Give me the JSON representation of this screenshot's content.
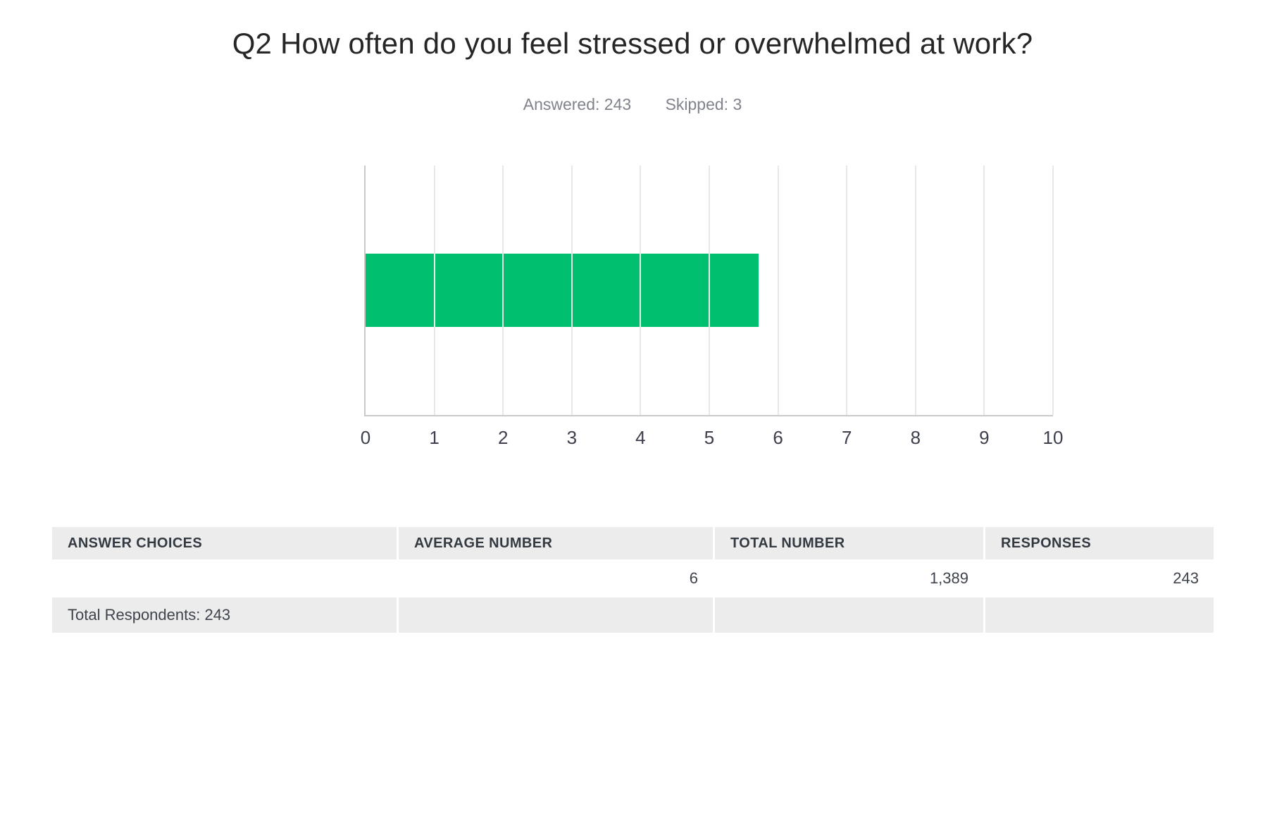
{
  "header": {
    "title": "Q2 How often do you feel stressed or overwhelmed at work?",
    "answered_label": "Answered: 243",
    "skipped_label": "Skipped: 3"
  },
  "chart_data": {
    "type": "bar",
    "orientation": "horizontal",
    "title": "Q2 How often do you feel stressed or overwhelmed at work?",
    "categories": [
      ""
    ],
    "series": [
      {
        "name": "Average Number",
        "values": [
          5.72
        ]
      }
    ],
    "xlabel": "",
    "ylabel": "",
    "xlim": [
      0,
      10
    ],
    "x_ticks": [
      "0",
      "1",
      "2",
      "3",
      "4",
      "5",
      "6",
      "7",
      "8",
      "9",
      "10"
    ],
    "grid": true,
    "legend": false,
    "bar_color": "#00BF6F",
    "answered": 243,
    "skipped": 3
  },
  "table": {
    "columns": [
      "ANSWER CHOICES",
      "AVERAGE NUMBER",
      "TOTAL NUMBER",
      "RESPONSES"
    ],
    "rows": [
      [
        "",
        "6",
        "1,389",
        "243"
      ]
    ],
    "footer": [
      "Total Respondents: 243",
      "",
      "",
      ""
    ]
  },
  "colors": {
    "bar": "#00BF6F",
    "axis_line": "#c9c9c9",
    "gridline": "#e8e8e8",
    "table_shaded_bg": "#ececec",
    "subtitle_text": "#80838c",
    "tick_text": "#3e414d"
  }
}
